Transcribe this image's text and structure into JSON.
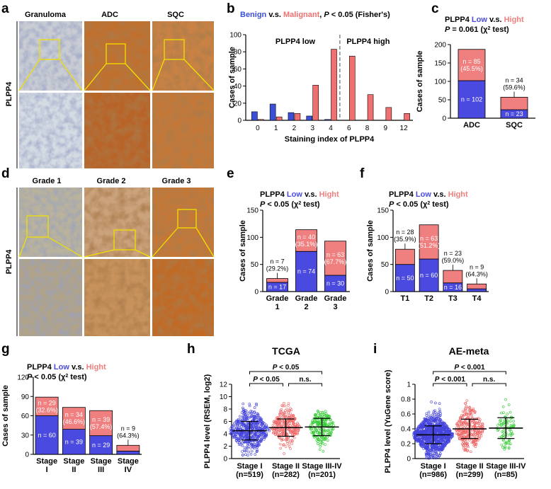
{
  "panels": {
    "a": {
      "letter": "a",
      "row_label": "PLPP4",
      "columns": [
        "Granuloma",
        "ADC",
        "SQC"
      ]
    },
    "d": {
      "letter": "d",
      "row_label": "PLPP4",
      "columns": [
        "Grade 1",
        "Grade 2",
        "Grade 3"
      ]
    }
  },
  "colors": {
    "low": "#4a4ae0",
    "high": "#f08080",
    "benign": "#3b4fd8",
    "malignant": "#f07070",
    "tissue_brown": "#b0652a",
    "tissue_blue": "#aab8cc"
  },
  "chart_data": [
    {
      "id": "b",
      "letter": "b",
      "type": "bar",
      "title_parts": [
        "Benign",
        " v.s. ",
        "Malignant",
        ", ",
        "P",
        " < 0.05 (Fisher's)"
      ],
      "categories": [
        "0",
        "1",
        "2",
        "3",
        "4",
        "6",
        "8",
        "9",
        "12"
      ],
      "series": [
        {
          "name": "Benign",
          "values": [
            10,
            19,
            9,
            5,
            1,
            0,
            0,
            0,
            0
          ]
        },
        {
          "name": "Malignant",
          "values": [
            1,
            4,
            8,
            41,
            83,
            75,
            30,
            15,
            8
          ]
        }
      ],
      "annotations": [
        "PLPP4 low",
        "PLPP4 high"
      ],
      "xlabel": "Staining index of PLPP4",
      "ylabel": "Cases of sample",
      "ylim": [
        0,
        100
      ],
      "yticks": [
        0,
        20,
        40,
        60,
        80,
        100
      ]
    },
    {
      "id": "c",
      "letter": "c",
      "type": "bar",
      "stacked": true,
      "title_parts": [
        "PLPP4 ",
        "Low",
        " v.s. ",
        "Hight"
      ],
      "subtitle_parts": [
        "P",
        " = 0.061 (χ",
        "2",
        " test)"
      ],
      "categories": [
        "ADC",
        "SQC"
      ],
      "series": [
        {
          "name": "Low",
          "values": [
            102,
            23
          ],
          "labels": [
            "n = 102",
            "n = 23"
          ]
        },
        {
          "name": "High",
          "values": [
            85,
            34
          ],
          "labels": [
            "n = 85\n(45.5%)",
            "n = 34\n(59.6%)"
          ]
        }
      ],
      "ylabel": "Cases of sample",
      "ylim": [
        0,
        200
      ],
      "yticks": [
        0,
        50,
        100,
        150,
        200
      ]
    },
    {
      "id": "e",
      "letter": "e",
      "type": "bar",
      "stacked": true,
      "title_parts": [
        "PLPP4 ",
        "Low",
        " v.s. ",
        "Hight"
      ],
      "subtitle_parts": [
        "P",
        " < 0.05 (χ",
        "2",
        " test)"
      ],
      "categories": [
        "Grade\n1",
        "Grade\n2",
        "Grade\n3"
      ],
      "series": [
        {
          "name": "Low",
          "values": [
            17,
            74,
            30
          ],
          "labels": [
            "n = 17",
            "n = 74",
            "n = 30"
          ]
        },
        {
          "name": "High",
          "values": [
            7,
            40,
            63
          ],
          "labels": [
            "n = 7\n(29.2%)",
            "n = 40\n(35.1%)",
            "n = 63\n(67.7%)"
          ]
        }
      ],
      "ylabel": "Cases of sample",
      "ylim": [
        0,
        150
      ],
      "yticks": [
        0,
        50,
        100,
        150
      ]
    },
    {
      "id": "f",
      "letter": "f",
      "type": "bar",
      "stacked": true,
      "title_parts": [
        "PLPP4 ",
        "Low",
        " v.s. ",
        "Hight"
      ],
      "subtitle_parts": [
        "P",
        " < 0.05 (χ",
        "2",
        " test)"
      ],
      "categories": [
        "T1",
        "T2",
        "T3",
        "T4"
      ],
      "series": [
        {
          "name": "Low",
          "values": [
            50,
            60,
            16,
            5
          ],
          "labels": [
            "n = 50",
            "n = 60",
            "n = 16",
            ""
          ]
        },
        {
          "name": "High",
          "values": [
            28,
            63,
            23,
            9
          ],
          "labels": [
            "n = 28\n(35.9%)",
            "n = 63\n(51.2%)",
            "n = 23\n(59.0%)",
            "n = 9\n(64.3%)"
          ]
        }
      ],
      "ylabel": "Cases of sample",
      "ylim": [
        0,
        150
      ],
      "yticks": [
        0,
        50,
        100,
        150
      ]
    },
    {
      "id": "g",
      "letter": "g",
      "type": "bar",
      "stacked": true,
      "title_parts": [
        "PLPP4 ",
        "Low",
        " v.s. ",
        "Hight"
      ],
      "subtitle_parts": [
        "P",
        " < 0.05 (χ",
        "2",
        " test)"
      ],
      "categories": [
        "Stage\nI",
        "Stage\nII",
        "Stage\nIII",
        "Stage\nIV"
      ],
      "series": [
        {
          "name": "Low",
          "values": [
            60,
            39,
            29,
            5
          ],
          "labels": [
            "n = 60",
            "n = 39",
            "n = 29",
            ""
          ]
        },
        {
          "name": "High",
          "values": [
            29,
            34,
            39,
            9
          ],
          "labels": [
            "n = 29\n(32.6%)",
            "n = 34\n(46.6%)",
            "n = 39\n(57.4%)",
            "n = 9\n(64.3%)"
          ]
        }
      ],
      "ylabel": "Cases of sample",
      "ylim": [
        0,
        120
      ],
      "yticks": [
        0,
        30,
        60,
        90,
        120
      ]
    },
    {
      "id": "h",
      "letter": "h",
      "type": "scatter",
      "title": "TCGA",
      "categories": [
        "Stage I\n(n=519)",
        "Stage II\n(n=282)",
        "Stage III-IV\n(n=201)"
      ],
      "counts": [
        519,
        282,
        201
      ],
      "means": [
        4.5,
        5.0,
        5.1
      ],
      "sd": [
        1.5,
        1.4,
        1.4
      ],
      "spread": [
        [
          0.5,
          9
        ],
        [
          0.5,
          10
        ],
        [
          1,
          9.6
        ]
      ],
      "colors": [
        "#4444dd",
        "#ee6666",
        "#33cc33"
      ],
      "comparisons": [
        {
          "from": 0,
          "to": 2,
          "label": "P < 0.05"
        },
        {
          "from": 0,
          "to": 1,
          "label": "P < 0.05"
        },
        {
          "from": 1,
          "to": 2,
          "label": "n.s."
        }
      ],
      "ylabel": "PLPP4 level (RSEM, log2)",
      "ylim": [
        0,
        12
      ],
      "yticks": [
        0,
        2,
        4,
        6,
        8,
        10,
        12
      ]
    },
    {
      "id": "i",
      "letter": "i",
      "type": "scatter",
      "title": "AE-meta",
      "categories": [
        "Stage I\n(n=986)",
        "Stage II\n(n=299)",
        "Stage III-IV\n(n=85)"
      ],
      "counts": [
        986,
        299,
        85
      ],
      "means": [
        0.32,
        0.4,
        0.41
      ],
      "sd": [
        0.12,
        0.13,
        0.14
      ],
      "spread": [
        [
          0.0,
          0.82
        ],
        [
          0.08,
          0.82
        ],
        [
          0.12,
          0.8
        ]
      ],
      "colors": [
        "#4444dd",
        "#ee6666",
        "#33cc33"
      ],
      "comparisons": [
        {
          "from": 0,
          "to": 2,
          "label": "P < 0.001"
        },
        {
          "from": 0,
          "to": 1,
          "label": "P < 0.001"
        },
        {
          "from": 1,
          "to": 2,
          "label": "n.s."
        }
      ],
      "ylabel": "PLPP4 level (YuGene score)",
      "ylim": [
        0,
        1.0
      ],
      "yticks": [
        0,
        0.2,
        0.4,
        0.6,
        0.8,
        1.0
      ]
    }
  ]
}
